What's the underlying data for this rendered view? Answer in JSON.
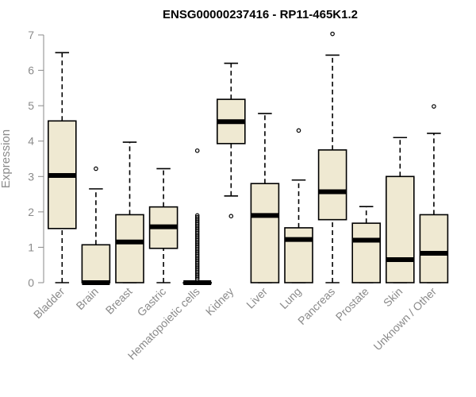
{
  "chart_data": {
    "type": "boxplot",
    "title": "ENSG00000237416 - RP11-465K1.2",
    "xlabel": "",
    "ylabel": "Expression",
    "ylim": [
      0,
      7
    ],
    "yticks": [
      0,
      1,
      2,
      3,
      4,
      5,
      6,
      7
    ],
    "colors": {
      "box_fill": "#efe9d2",
      "axis": "#8a8a8a",
      "ink": "#000000"
    },
    "categories": [
      "Bladder",
      "Brain",
      "Breast",
      "Gastric",
      "Hematopoietic cells",
      "Kidney",
      "Liver",
      "Lung",
      "Pancreas",
      "Prostate",
      "Skin",
      "Unknown / Other"
    ],
    "boxes": [
      {
        "name": "Bladder",
        "min": 0,
        "q1": 1.53,
        "median": 3.03,
        "q3": 4.57,
        "max": 6.5,
        "outliers": []
      },
      {
        "name": "Brain",
        "min": 0,
        "q1": 0,
        "median": 0,
        "q3": 1.07,
        "max": 2.65,
        "outliers": [
          3.22
        ]
      },
      {
        "name": "Breast",
        "min": 0,
        "q1": 0,
        "median": 1.15,
        "q3": 1.92,
        "max": 3.97,
        "outliers": []
      },
      {
        "name": "Gastric",
        "min": 0,
        "q1": 0.97,
        "median": 1.58,
        "q3": 2.14,
        "max": 3.22,
        "outliers": []
      },
      {
        "name": "Hematopoietic cells",
        "min": 0,
        "q1": 0,
        "median": 0,
        "q3": 0,
        "max": 0,
        "outliers": [
          0.1,
          0.15,
          0.2,
          0.25,
          0.3,
          0.35,
          0.4,
          0.45,
          0.5,
          0.55,
          0.6,
          0.65,
          0.7,
          0.75,
          0.8,
          0.85,
          0.9,
          0.95,
          1.0,
          1.05,
          1.1,
          1.15,
          1.2,
          1.25,
          1.3,
          1.35,
          1.4,
          1.45,
          1.5,
          1.55,
          1.6,
          1.65,
          1.7,
          1.75,
          1.8,
          1.85,
          1.9,
          3.73
        ]
      },
      {
        "name": "Kidney",
        "min": 2.45,
        "q1": 3.93,
        "median": 4.55,
        "q3": 5.18,
        "max": 6.2,
        "outliers": [
          1.88
        ]
      },
      {
        "name": "Liver",
        "min": 0,
        "q1": 0,
        "median": 1.9,
        "q3": 2.8,
        "max": 4.78,
        "outliers": []
      },
      {
        "name": "Lung",
        "min": 0,
        "q1": 0,
        "median": 1.22,
        "q3": 1.55,
        "max": 2.9,
        "outliers": [
          4.3
        ]
      },
      {
        "name": "Pancreas",
        "min": 0,
        "q1": 1.78,
        "median": 2.57,
        "q3": 3.75,
        "max": 6.43,
        "outliers": [
          7.03
        ]
      },
      {
        "name": "Prostate",
        "min": 0,
        "q1": 0,
        "median": 1.2,
        "q3": 1.68,
        "max": 2.15,
        "outliers": []
      },
      {
        "name": "Skin",
        "min": 0,
        "q1": 0,
        "median": 0.65,
        "q3": 3.0,
        "max": 4.1,
        "outliers": []
      },
      {
        "name": "Unknown / Other",
        "min": 0,
        "q1": 0,
        "median": 0.83,
        "q3": 1.92,
        "max": 4.22,
        "outliers": [
          4.98
        ]
      }
    ]
  }
}
